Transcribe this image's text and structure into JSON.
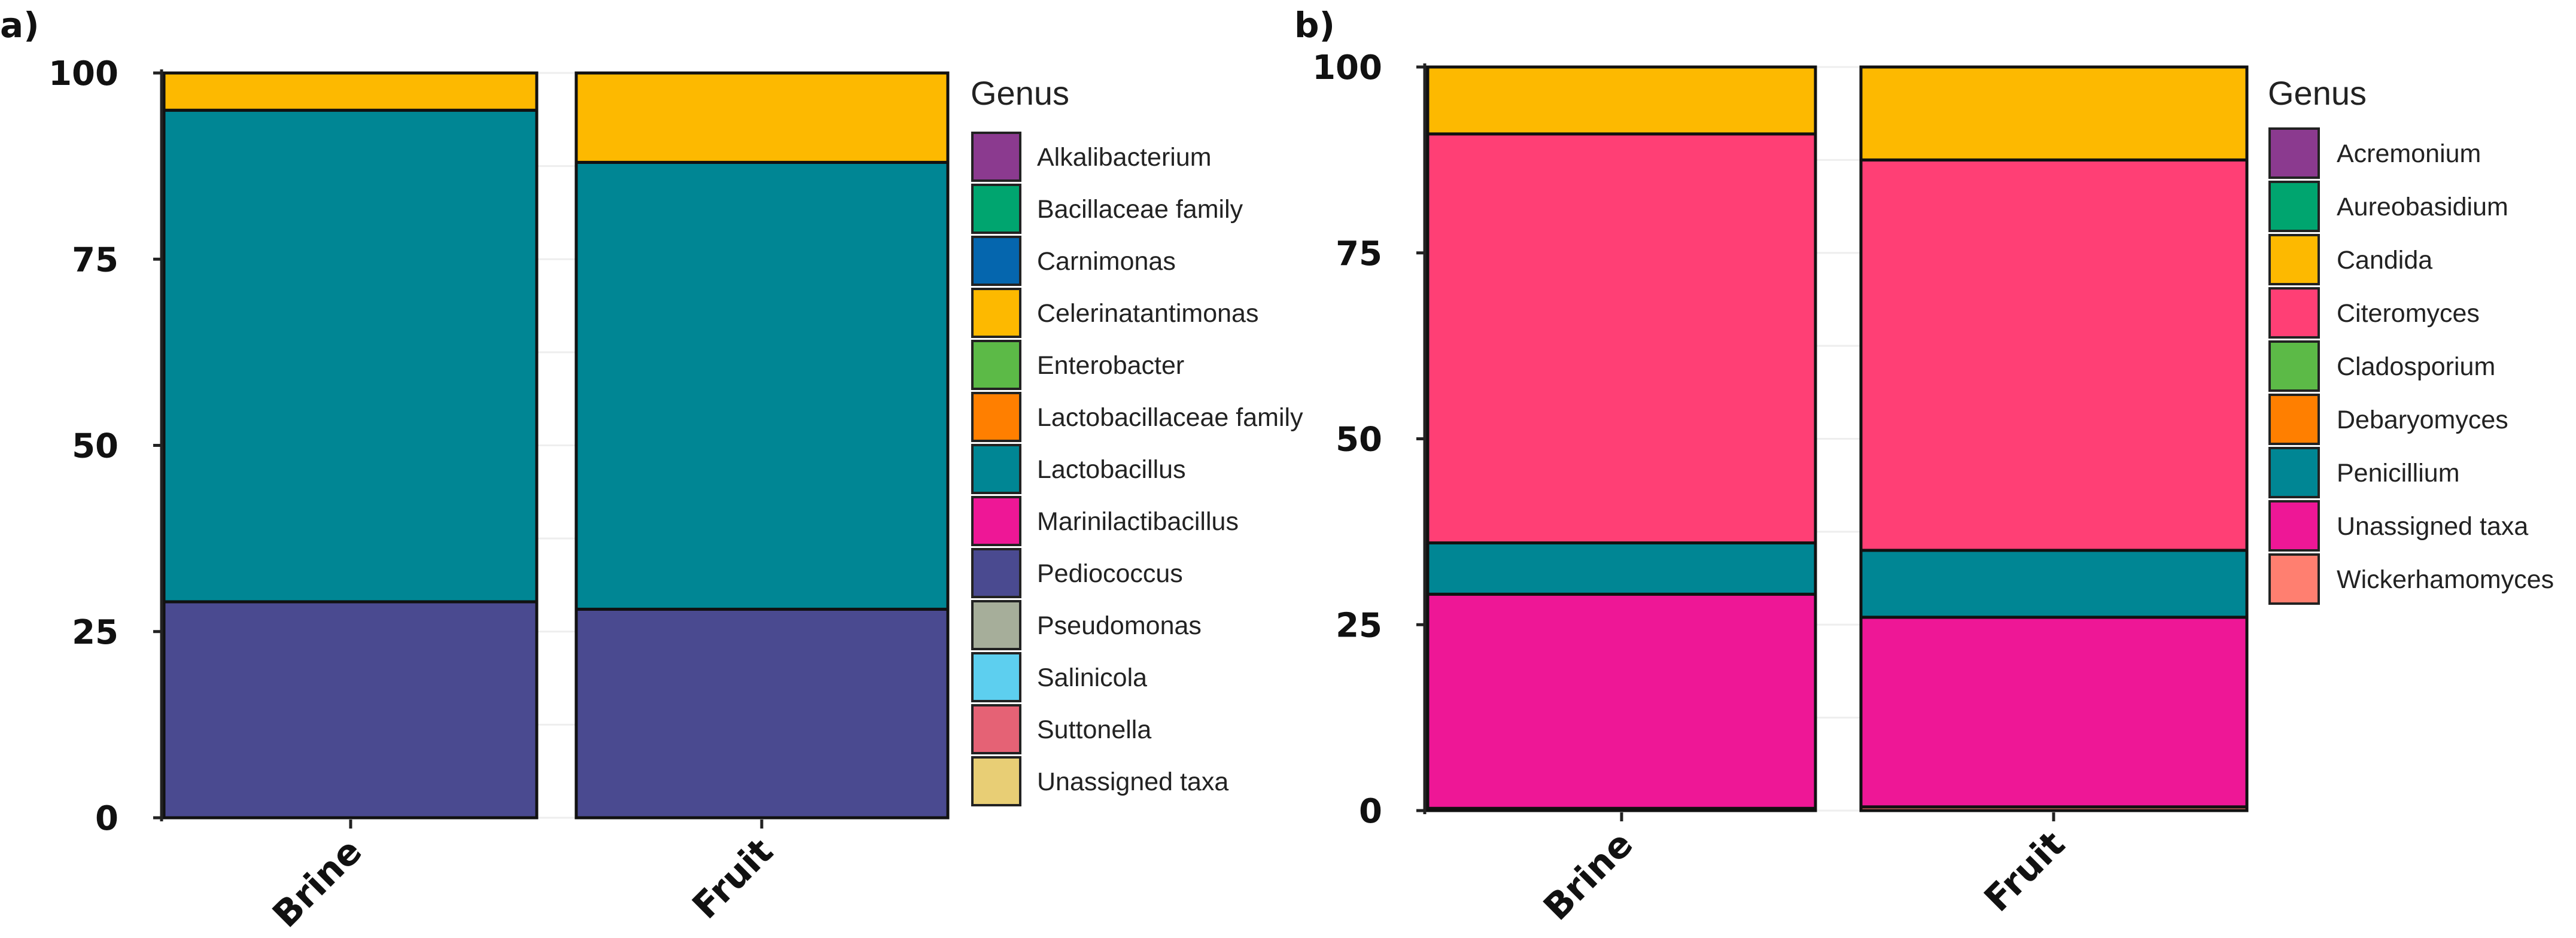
{
  "chart_data": [
    {
      "panel_label": "a)",
      "type": "bar",
      "stacked": true,
      "categories": [
        "Brine",
        "Fruit"
      ],
      "ylim": [
        0,
        100
      ],
      "yticks": [
        "0",
        "25",
        "50",
        "75",
        "100"
      ],
      "legend_title": "Genus",
      "legend": [
        {
          "name": "Alkalibacterium",
          "color": "#8B3A8F"
        },
        {
          "name": "Bacillaceae family",
          "color": "#00A56F"
        },
        {
          "name": "Carnimonas",
          "color": "#0566AE"
        },
        {
          "name": "Celerinatantimonas",
          "color": "#FDB900"
        },
        {
          "name": "Enterobacter",
          "color": "#5CBA47"
        },
        {
          "name": "Lactobacillaceae family",
          "color": "#FF7F00"
        },
        {
          "name": "Lactobacillus",
          "color": "#008694"
        },
        {
          "name": "Marinilactibacillus",
          "color": "#EE1796"
        },
        {
          "name": "Pediococcus",
          "color": "#4A4A90"
        },
        {
          "name": "Pseudomonas",
          "color": "#A6AE9A"
        },
        {
          "name": "Salinicola",
          "color": "#5DCFEF"
        },
        {
          "name": "Suttonella",
          "color": "#E56275"
        },
        {
          "name": "Unassigned taxa",
          "color": "#E8CE75"
        }
      ],
      "series": [
        {
          "name": "Pediococcus",
          "values": [
            29,
            28
          ]
        },
        {
          "name": "Lactobacillus",
          "values": [
            66,
            60
          ]
        },
        {
          "name": "Celerinatantimonas",
          "values": [
            5,
            12
          ]
        }
      ]
    },
    {
      "panel_label": "b)",
      "type": "bar",
      "stacked": true,
      "categories": [
        "Brine",
        "Fruit"
      ],
      "ylim": [
        0,
        100
      ],
      "yticks": [
        "0",
        "25",
        "50",
        "75",
        "100"
      ],
      "legend_title": "Genus",
      "legend": [
        {
          "name": "Acremonium",
          "color": "#8B3A8F"
        },
        {
          "name": "Aureobasidium",
          "color": "#00A56F"
        },
        {
          "name": "Candida",
          "color": "#FDB900"
        },
        {
          "name": "Citeromyces",
          "color": "#FF3F75"
        },
        {
          "name": "Cladosporium",
          "color": "#5CBA47"
        },
        {
          "name": "Debaryomyces",
          "color": "#FF7F00"
        },
        {
          "name": "Penicillium",
          "color": "#008694"
        },
        {
          "name": "Unassigned taxa",
          "color": "#EE1796"
        },
        {
          "name": "Wickerhamomyces",
          "color": "#FF7F70"
        }
      ],
      "series": [
        {
          "name": "Wickerhamomyces",
          "values": [
            0.3,
            0.5
          ]
        },
        {
          "name": "Unassigned taxa",
          "values": [
            28.8,
            25.5
          ]
        },
        {
          "name": "Penicillium",
          "values": [
            6.9,
            9
          ]
        },
        {
          "name": "Citeromyces",
          "values": [
            55,
            52.5
          ]
        },
        {
          "name": "Candida",
          "values": [
            9,
            12.5
          ]
        }
      ]
    }
  ]
}
